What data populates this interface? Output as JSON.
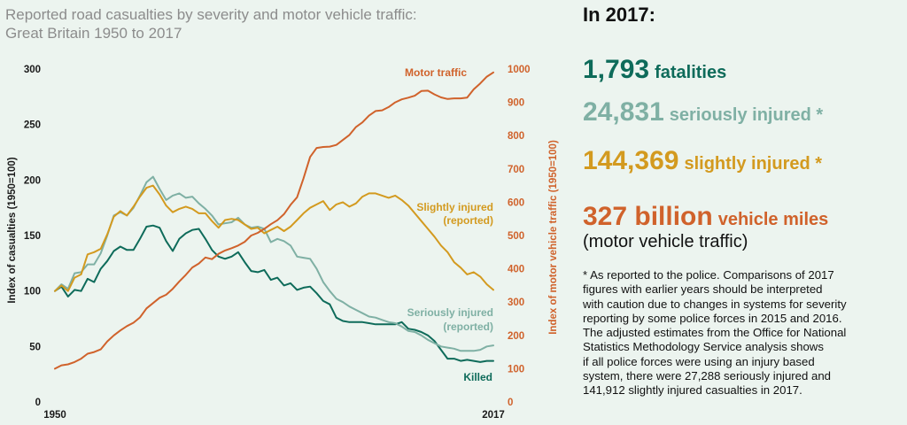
{
  "chart_title": [
    "Reported road casualties by severity and motor vehicle traffic:",
    "Great Britain 1950 to 2017"
  ],
  "panel": {
    "heading": "In 2017:",
    "stats": {
      "fatalities": {
        "value": "1,793",
        "label": "fatalities"
      },
      "serious": {
        "value": "24,831",
        "label": "seriously injured *"
      },
      "slight": {
        "value": "144,369",
        "label": "slightly injured *"
      },
      "miles": {
        "value": "327 billion",
        "label": "vehicle miles"
      },
      "miles_sub": "(motor vehicle traffic)"
    },
    "footnote_lines": [
      "* As reported to the police. Comparisons of 2017",
      "figures with earlier years should be interpreted",
      "with caution due to changes in systems for severity",
      "reporting by some police forces in 2015 and 2016.",
      "The adjusted estimates from the Office for National",
      "Statistics Methodology Service analysis shows",
      "if all police forces were using an injury based",
      "system, there were 27,288 seriously injured and",
      "141,912 slightly injured casualties in 2017."
    ]
  },
  "colors": {
    "killed": "#0e6b5a",
    "serious": "#7fb0a4",
    "slight": "#d39a1f",
    "traffic": "#d0622b"
  },
  "chart_data": {
    "type": "line",
    "x_tick_labels": [
      "1950",
      "2017"
    ],
    "xlim": [
      1950,
      2017
    ],
    "ylabel": "Index of casualties (1950=100)",
    "ylim": [
      0,
      300
    ],
    "y_ticks": [
      0,
      50,
      100,
      150,
      200,
      250,
      300
    ],
    "y2label": "Index of motor vehicle traffic (1950=100)",
    "y2lim": [
      0,
      1000
    ],
    "y2_ticks": [
      0,
      100,
      200,
      300,
      400,
      500,
      600,
      700,
      800,
      900,
      1000
    ],
    "grid": false,
    "x": [
      1950,
      1951,
      1952,
      1953,
      1954,
      1955,
      1956,
      1957,
      1958,
      1959,
      1960,
      1961,
      1962,
      1963,
      1964,
      1965,
      1966,
      1967,
      1968,
      1969,
      1970,
      1971,
      1972,
      1973,
      1974,
      1975,
      1976,
      1977,
      1978,
      1979,
      1980,
      1981,
      1982,
      1983,
      1984,
      1985,
      1986,
      1987,
      1988,
      1989,
      1990,
      1991,
      1992,
      1993,
      1994,
      1995,
      1996,
      1997,
      1998,
      1999,
      2000,
      2001,
      2002,
      2003,
      2004,
      2005,
      2006,
      2007,
      2008,
      2009,
      2010,
      2011,
      2012,
      2013,
      2014,
      2015,
      2016,
      2017
    ],
    "series": [
      {
        "name": "Killed",
        "label_lines": [
          "Killed"
        ],
        "axis": "left",
        "values": [
          100,
          104,
          95,
          101,
          100,
          111,
          108,
          120,
          127,
          136,
          140,
          137,
          137,
          147,
          158,
          159,
          157,
          145,
          136,
          147,
          152,
          155,
          156,
          147,
          137,
          131,
          129,
          131,
          135,
          126,
          118,
          117,
          119,
          110,
          112,
          105,
          107,
          101,
          103,
          104,
          98,
          91,
          88,
          76,
          73,
          72,
          72,
          72,
          71,
          70,
          70,
          70,
          70,
          72,
          66,
          65,
          63,
          60,
          55,
          47,
          39,
          39,
          37,
          38,
          37,
          36,
          37,
          37
        ]
      },
      {
        "name": "Seriously injured (reported)",
        "label_lines": [
          "Seriously injured",
          "(reported)"
        ],
        "axis": "left",
        "values": [
          100,
          106,
          102,
          116,
          117,
          124,
          124,
          134,
          150,
          168,
          171,
          168,
          175,
          186,
          198,
          203,
          192,
          182,
          186,
          188,
          184,
          185,
          179,
          174,
          168,
          160,
          161,
          162,
          166,
          160,
          157,
          158,
          156,
          144,
          147,
          145,
          141,
          131,
          130,
          129,
          120,
          108,
          100,
          93,
          90,
          86,
          83,
          80,
          77,
          76,
          74,
          72,
          71,
          68,
          64,
          63,
          60,
          56,
          53,
          50,
          49,
          48,
          46,
          46,
          46,
          47,
          50,
          51
        ]
      },
      {
        "name": "Slightly injured (reported)",
        "label_lines": [
          "Slightly injured",
          "(reported)"
        ],
        "axis": "left",
        "values": [
          100,
          105,
          100,
          112,
          115,
          133,
          135,
          138,
          151,
          167,
          172,
          168,
          176,
          185,
          193,
          195,
          187,
          177,
          171,
          174,
          176,
          174,
          170,
          170,
          163,
          157,
          164,
          165,
          164,
          160,
          156,
          157,
          152,
          155,
          158,
          154,
          158,
          164,
          170,
          175,
          178,
          181,
          173,
          178,
          180,
          176,
          179,
          185,
          188,
          188,
          186,
          184,
          186,
          182,
          177,
          170,
          163,
          156,
          149,
          141,
          135,
          126,
          121,
          115,
          117,
          113,
          106,
          101
        ]
      },
      {
        "name": "Motor traffic",
        "label_lines": [
          "Motor traffic"
        ],
        "axis": "right",
        "values": [
          100,
          110,
          113,
          120,
          130,
          145,
          150,
          158,
          182,
          200,
          215,
          228,
          238,
          254,
          281,
          297,
          313,
          322,
          340,
          362,
          382,
          404,
          416,
          434,
          429,
          445,
          455,
          462,
          470,
          481,
          500,
          508,
          520,
          534,
          546,
          564,
          592,
          615,
          672,
          736,
          763,
          766,
          767,
          772,
          787,
          802,
          826,
          840,
          860,
          874,
          876,
          886,
          900,
          909,
          914,
          920,
          934,
          935,
          924,
          915,
          910,
          912,
          912,
          914,
          939,
          957,
          977,
          990
        ]
      }
    ]
  }
}
